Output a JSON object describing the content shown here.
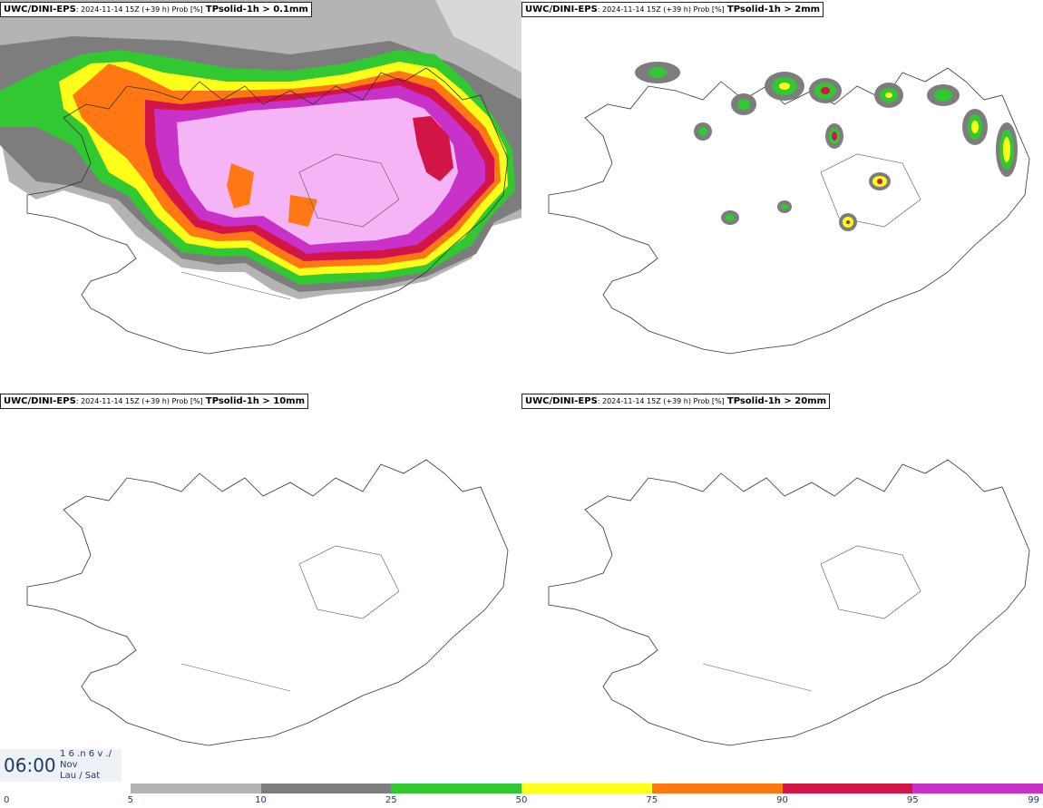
{
  "panels": [
    {
      "model": "UWC/DINI-EPS",
      "meta": ": 2024-11-14 15Z (+39 h) Prob [%]",
      "field": "TPsolid-1h > 0.1mm"
    },
    {
      "model": "UWC/DINI-EPS",
      "meta": ": 2024-11-14 15Z (+39 h) Prob [%]",
      "field": "TPsolid-1h > 2mm"
    },
    {
      "model": "UWC/DINI-EPS",
      "meta": ": 2024-11-14 15Z (+39 h) Prob [%]",
      "field": "TPsolid-1h > 10mm"
    },
    {
      "model": "UWC/DINI-EPS",
      "meta": ": 2024-11-14 15Z (+39 h) Prob [%]",
      "field": "TPsolid-1h > 20mm"
    }
  ],
  "valid_time": {
    "clock": "06:00",
    "line1": "1 6 .n 6 v ./",
    "line2": "Nov",
    "line3": "Lau / Sat"
  },
  "colorbar": {
    "ticks": [
      "0",
      "5",
      "10",
      "25",
      "50",
      "75",
      "90",
      "95",
      "99"
    ],
    "colors": [
      "#ffffff",
      "#b4b4b4",
      "#7d7d7d",
      "#32c832",
      "#ffff19",
      "#ff7814",
      "#d21446",
      "#c832c8",
      "#f5b4f5"
    ]
  },
  "colors": {
    "coastline": "#333333",
    "text_blue": "#1d3a66"
  }
}
